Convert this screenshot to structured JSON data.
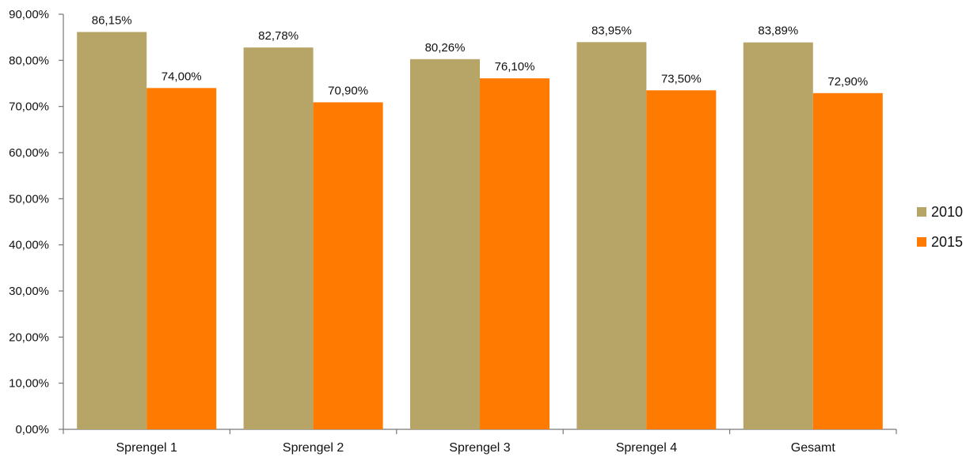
{
  "chart_data": {
    "type": "bar",
    "categories": [
      "Sprengel 1",
      "Sprengel 2",
      "Sprengel 3",
      "Sprengel 4",
      "Gesamt"
    ],
    "series": [
      {
        "name": "2010",
        "color": "#b6a567",
        "values": [
          86.15,
          82.78,
          80.26,
          83.95,
          83.89
        ],
        "labels": [
          "86,15%",
          "82,78%",
          "80,26%",
          "83,95%",
          "83,89%"
        ]
      },
      {
        "name": "2015",
        "color": "#ff7a00",
        "values": [
          74.0,
          70.9,
          76.1,
          73.5,
          72.9
        ],
        "labels": [
          "74,00%",
          "70,90%",
          "76,10%",
          "73,50%",
          "72,90%"
        ]
      }
    ],
    "ylim": [
      0,
      90
    ],
    "yticks": [
      0,
      10,
      20,
      30,
      40,
      50,
      60,
      70,
      80,
      90
    ],
    "ytick_labels": [
      "0,00%",
      "10,00%",
      "20,00%",
      "30,00%",
      "40,00%",
      "50,00%",
      "60,00%",
      "70,00%",
      "80,00%",
      "90,00%"
    ],
    "grid": false,
    "legend_position": "right"
  }
}
